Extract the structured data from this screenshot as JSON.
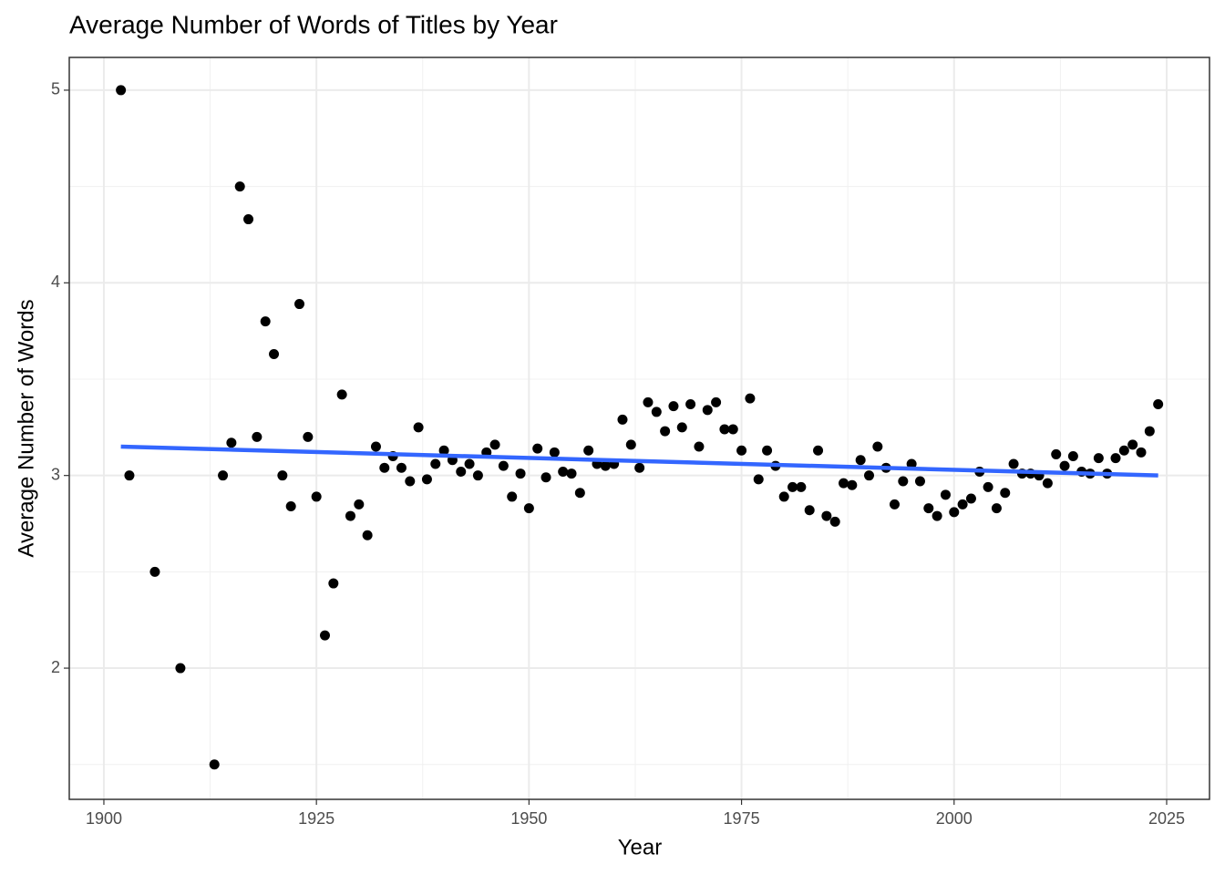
{
  "chart_data": {
    "type": "scatter",
    "title": "Average Number of Words of Titles by Year",
    "x_label": "Year",
    "y_label": "Average Number of Words",
    "x": [
      1902,
      1903,
      1906,
      1909,
      1913,
      1914,
      1915,
      1916,
      1917,
      1918,
      1919,
      1920,
      1921,
      1922,
      1923,
      1924,
      1925,
      1926,
      1927,
      1928,
      1929,
      1930,
      1931,
      1932,
      1933,
      1934,
      1935,
      1936,
      1937,
      1938,
      1939,
      1940,
      1941,
      1942,
      1943,
      1944,
      1945,
      1946,
      1947,
      1948,
      1949,
      1950,
      1951,
      1952,
      1953,
      1954,
      1955,
      1956,
      1957,
      1958,
      1959,
      1960,
      1961,
      1962,
      1963,
      1964,
      1965,
      1966,
      1967,
      1968,
      1969,
      1970,
      1971,
      1972,
      1973,
      1974,
      1975,
      1976,
      1977,
      1978,
      1979,
      1980,
      1981,
      1982,
      1983,
      1984,
      1985,
      1986,
      1987,
      1988,
      1989,
      1990,
      1991,
      1992,
      1993,
      1994,
      1995,
      1996,
      1997,
      1998,
      1999,
      2000,
      2001,
      2002,
      2003,
      2004,
      2005,
      2006,
      2007,
      2008,
      2009,
      2010,
      2011,
      2012,
      2013,
      2014,
      2015,
      2016,
      2017,
      2018,
      2019,
      2020,
      2021,
      2022,
      2023,
      2024
    ],
    "values": [
      5.0,
      3.0,
      2.5,
      2.0,
      1.5,
      3.0,
      3.17,
      4.5,
      4.33,
      3.2,
      3.8,
      3.63,
      3.0,
      2.84,
      3.89,
      3.2,
      2.89,
      2.17,
      2.44,
      3.42,
      2.79,
      2.85,
      2.69,
      3.15,
      3.04,
      3.1,
      3.04,
      2.97,
      3.25,
      2.98,
      3.06,
      3.13,
      3.08,
      3.02,
      3.06,
      3.0,
      3.12,
      3.16,
      3.05,
      2.89,
      3.01,
      2.83,
      3.14,
      2.99,
      3.12,
      3.02,
      3.01,
      2.91,
      3.13,
      3.06,
      3.05,
      3.06,
      3.29,
      3.16,
      3.04,
      3.38,
      3.33,
      3.23,
      3.36,
      3.25,
      3.37,
      3.15,
      3.34,
      3.38,
      3.24,
      3.24,
      3.13,
      3.4,
      2.98,
      3.13,
      3.05,
      2.89,
      2.94,
      2.94,
      2.82,
      3.13,
      2.79,
      2.76,
      2.96,
      2.95,
      3.08,
      3.0,
      3.15,
      3.04,
      2.85,
      2.97,
      3.06,
      2.97,
      2.83,
      2.79,
      2.9,
      2.81,
      2.85,
      2.88,
      3.02,
      2.94,
      2.83,
      2.91,
      3.06,
      3.01,
      3.01,
      3.0,
      2.96,
      3.11,
      3.05,
      3.1,
      3.02,
      3.01,
      3.09,
      3.01,
      3.09,
      3.13,
      3.16,
      3.12,
      3.23,
      3.37
    ],
    "color": "#000000",
    "trend_line": {
      "x": [
        1902,
        2024
      ],
      "values": [
        3.15,
        3.0
      ],
      "color": "#3366ff"
    },
    "xlim": [
      1895.93,
      2030.04
    ],
    "ylim": [
      1.319,
      5.17
    ],
    "xticks": [
      1900,
      1925,
      1950,
      1975,
      2000,
      2025
    ],
    "yticks": [
      2,
      3,
      4,
      5
    ],
    "xminor": [
      1912.5,
      1937.5,
      1962.5,
      1987.5,
      2012.5
    ],
    "yminor": [
      1.5,
      2.5,
      3.5,
      4.5
    ],
    "grid": true
  }
}
